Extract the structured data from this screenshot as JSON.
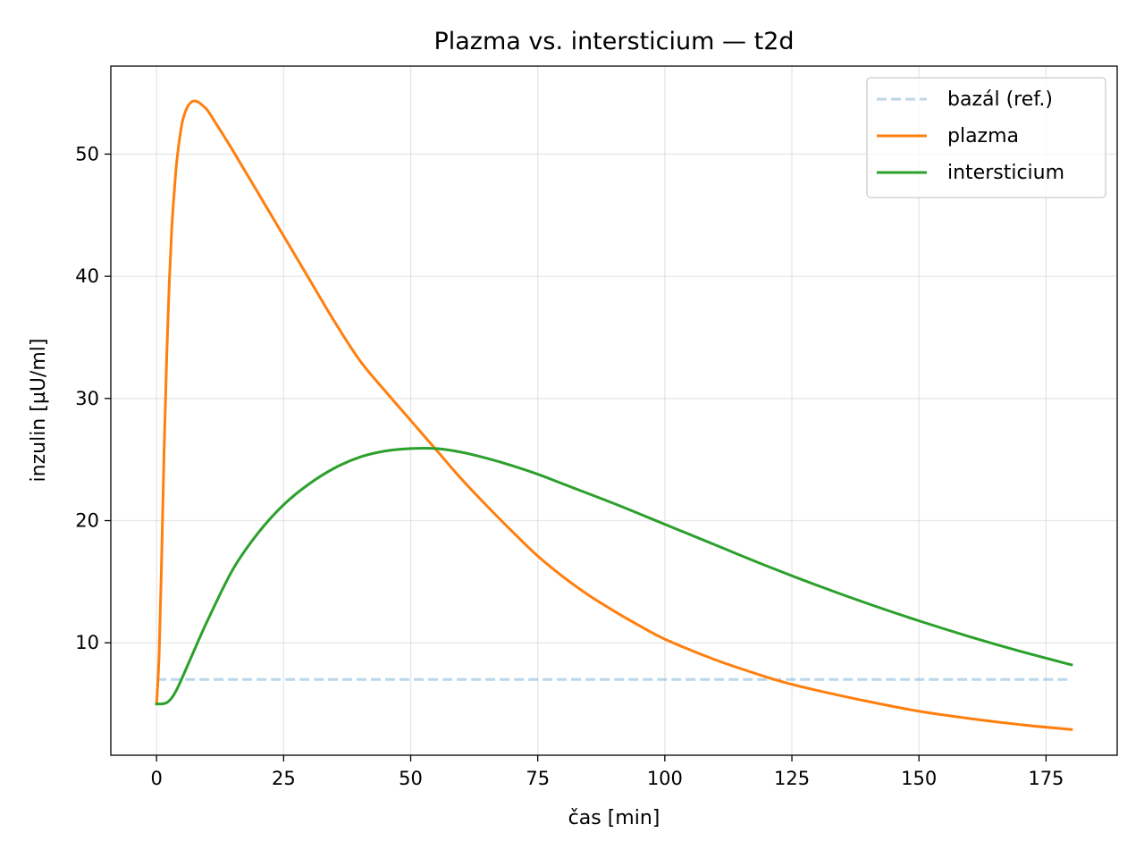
{
  "chart_data": {
    "type": "line",
    "title": "Plazma vs. intersticium — t2d",
    "xlabel": "čas [min]",
    "ylabel": "inzulin [µU/ml]",
    "xlim": [
      -9,
      189
    ],
    "ylim": [
      0.8,
      57.2
    ],
    "xticks": [
      0,
      25,
      50,
      75,
      100,
      125,
      150,
      175
    ],
    "yticks": [
      10,
      20,
      30,
      40,
      50
    ],
    "grid": true,
    "legend_position": "top-right",
    "series": [
      {
        "name": "bazál (ref.)",
        "color": "#1f77b4",
        "dashed": true,
        "opacity": 0.3,
        "x": [
          0,
          180
        ],
        "y": [
          7.0,
          7.0
        ]
      },
      {
        "name": "plazma",
        "color": "#ff7f0e",
        "dashed": false,
        "x": [
          0,
          0.5,
          1,
          1.5,
          2,
          2.5,
          3,
          3.5,
          4,
          5,
          6,
          7,
          8,
          9,
          10,
          12,
          15,
          20,
          25,
          30,
          35,
          40,
          45,
          50,
          55,
          60,
          65,
          70,
          75,
          80,
          85,
          90,
          95,
          100,
          110,
          120,
          125,
          130,
          140,
          150,
          160,
          170,
          180
        ],
        "y": [
          5.0,
          9.0,
          17.0,
          26.0,
          33.5,
          39.5,
          44.0,
          47.0,
          49.5,
          52.5,
          53.8,
          54.3,
          54.3,
          54.0,
          53.6,
          52.3,
          50.3,
          46.8,
          43.3,
          39.8,
          36.3,
          33.1,
          30.6,
          28.2,
          25.8,
          23.4,
          21.2,
          19.1,
          17.1,
          15.4,
          13.9,
          12.6,
          11.4,
          10.3,
          8.6,
          7.2,
          6.6,
          6.1,
          5.2,
          4.4,
          3.8,
          3.3,
          2.9
        ]
      },
      {
        "name": "intersticium",
        "color": "#2ca02c",
        "dashed": false,
        "x": [
          0,
          1,
          2,
          3,
          4,
          5,
          7,
          10,
          15,
          20,
          25,
          30,
          35,
          40,
          45,
          50,
          55,
          60,
          65,
          70,
          75,
          80,
          90,
          100,
          110,
          120,
          130,
          140,
          150,
          160,
          170,
          180
        ],
        "y": [
          5.0,
          5.0,
          5.1,
          5.5,
          6.2,
          7.1,
          9.0,
          11.8,
          16.0,
          19.0,
          21.3,
          23.0,
          24.3,
          25.2,
          25.7,
          25.9,
          25.9,
          25.6,
          25.1,
          24.5,
          23.8,
          23.0,
          21.4,
          19.7,
          18.0,
          16.3,
          14.7,
          13.2,
          11.8,
          10.5,
          9.3,
          8.2
        ]
      }
    ]
  }
}
